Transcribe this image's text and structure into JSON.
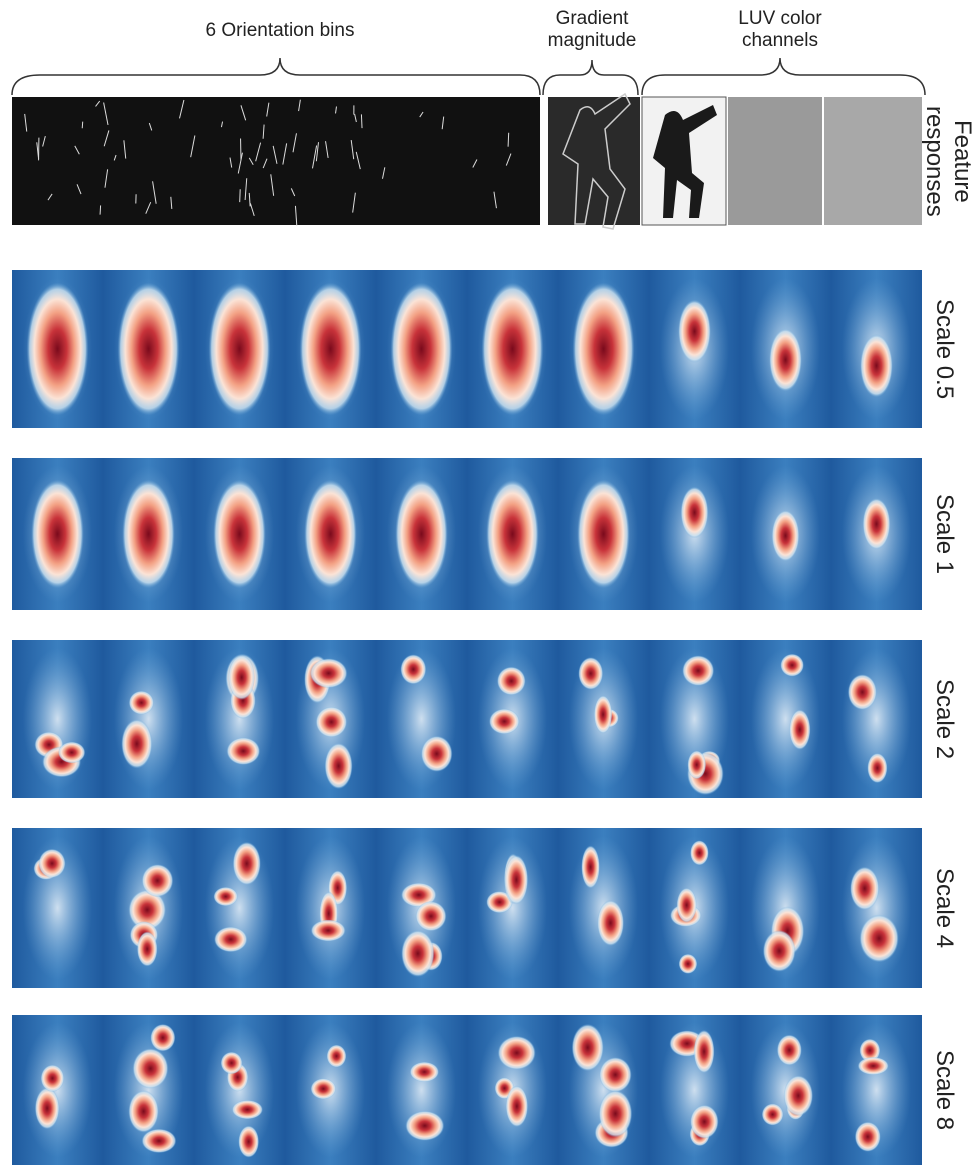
{
  "header": {
    "orientation_bins": "6 Orientation bins",
    "gradient_magnitude": "Gradient\nmagnitude",
    "luv_channels": "LUV color\nchannels"
  },
  "rows": [
    "Feature\nresponses",
    "Scale 0.5",
    "Scale 1",
    "Scale 2",
    "Scale 4",
    "Scale 8"
  ]
}
